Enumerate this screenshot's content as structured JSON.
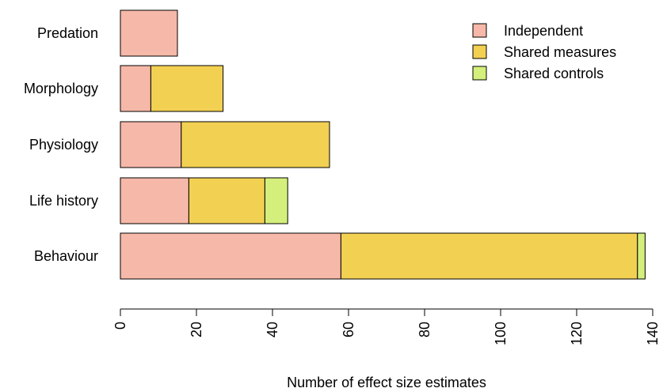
{
  "chart_data": {
    "type": "bar",
    "orientation": "horizontal",
    "stacked": true,
    "categories": [
      "Predation",
      "Morphology",
      "Physiology",
      "Life history",
      "Behaviour"
    ],
    "series": [
      {
        "name": "Independent",
        "color": "#f6b8a8",
        "values": [
          15,
          8,
          16,
          18,
          58
        ]
      },
      {
        "name": "Shared measures",
        "color": "#f2d052",
        "values": [
          0,
          19,
          39,
          20,
          78
        ]
      },
      {
        "name": "Shared controls",
        "color": "#d4ef7b",
        "values": [
          0,
          0,
          0,
          6,
          2
        ]
      }
    ],
    "xlabel": "Number of effect size estimates",
    "ylabel": "",
    "xlim": [
      0,
      140
    ],
    "xticks": [
      0,
      20,
      40,
      60,
      80,
      100,
      120,
      140
    ],
    "grid": false,
    "legend_position": "top-right"
  }
}
